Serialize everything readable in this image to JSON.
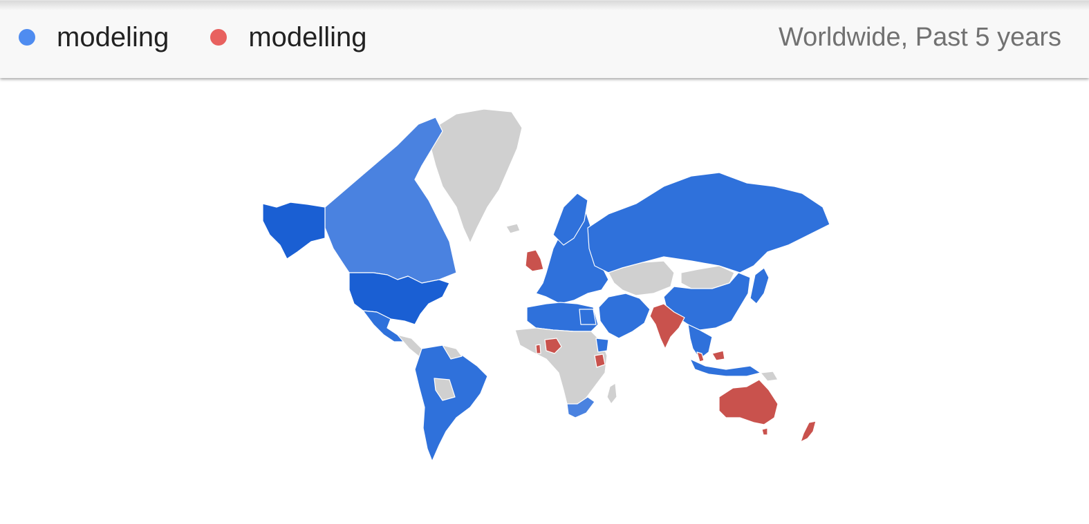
{
  "legend": {
    "series": [
      {
        "label": "modeling",
        "color": "#4f8cf0"
      },
      {
        "label": "modelling",
        "color": "#e8615f"
      }
    ]
  },
  "scope": "Worldwide, Past 5 years",
  "map": {
    "colors": {
      "modeling_strong": "#1a5fd3",
      "modeling": "#2f71db",
      "modeling_light": "#4a82e0",
      "modelling": "#c9524d",
      "no_data": "#d0d0d0"
    },
    "regions": [
      {
        "name": "United States",
        "leader": "modeling",
        "shade": "modeling_strong"
      },
      {
        "name": "Canada",
        "leader": "modeling",
        "shade": "modeling_light"
      },
      {
        "name": "Greenland",
        "leader": "none",
        "shade": "no_data"
      },
      {
        "name": "Mexico",
        "leader": "modeling",
        "shade": "modeling"
      },
      {
        "name": "South America",
        "leader": "modeling",
        "shade": "modeling"
      },
      {
        "name": "Russia",
        "leader": "modeling",
        "shade": "modeling"
      },
      {
        "name": "China",
        "leader": "modeling",
        "shade": "modeling"
      },
      {
        "name": "Europe",
        "leader": "modeling",
        "shade": "modeling"
      },
      {
        "name": "United Kingdom",
        "leader": "modelling",
        "shade": "modelling"
      },
      {
        "name": "India",
        "leader": "modelling",
        "shade": "modelling"
      },
      {
        "name": "Nigeria",
        "leader": "modelling",
        "shade": "modelling"
      },
      {
        "name": "Kenya",
        "leader": "modelling",
        "shade": "modelling"
      },
      {
        "name": "Australia",
        "leader": "modelling",
        "shade": "modelling"
      },
      {
        "name": "New Zealand",
        "leader": "modelling",
        "shade": "modelling"
      },
      {
        "name": "Malaysia",
        "leader": "modelling",
        "shade": "modelling"
      },
      {
        "name": "Egypt",
        "leader": "modeling",
        "shade": "modeling"
      },
      {
        "name": "South Africa",
        "leader": "modeling",
        "shade": "modeling_light"
      },
      {
        "name": "Indonesia",
        "leader": "modeling",
        "shade": "modeling"
      },
      {
        "name": "Japan",
        "leader": "modeling",
        "shade": "modeling"
      },
      {
        "name": "Mongolia",
        "leader": "none",
        "shade": "no_data"
      },
      {
        "name": "Kazakhstan",
        "leader": "none",
        "shade": "no_data"
      },
      {
        "name": "Central Africa",
        "leader": "none",
        "shade": "no_data"
      }
    ]
  }
}
